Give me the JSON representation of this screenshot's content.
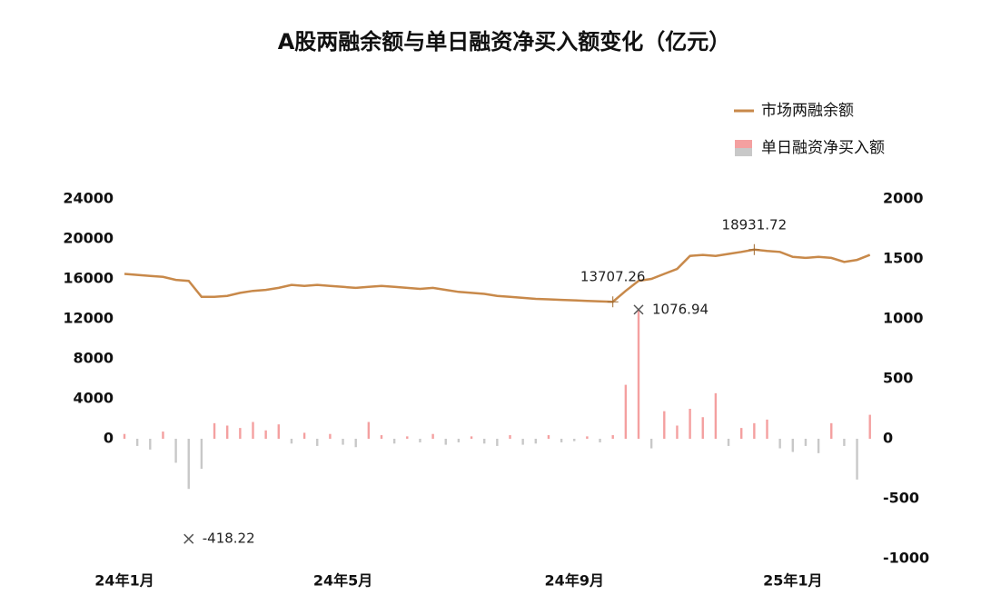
{
  "chart_data": {
    "type": "bar-line",
    "title": "A股两融余额与单日融资净买入额变化（亿元）",
    "categories": [
      "24年1月",
      null,
      null,
      null,
      null,
      null,
      null,
      null,
      null,
      null,
      null,
      null,
      null,
      null,
      null,
      null,
      null,
      "24年5月",
      null,
      null,
      null,
      null,
      null,
      null,
      null,
      null,
      null,
      null,
      null,
      null,
      null,
      null,
      null,
      null,
      null,
      "24年9月",
      null,
      null,
      null,
      null,
      null,
      null,
      null,
      null,
      null,
      null,
      null,
      null,
      null,
      null,
      null,
      null,
      "25年1月",
      null,
      null,
      null,
      null,
      null,
      null
    ],
    "series": [
      {
        "name": "市场两融余额",
        "type": "line",
        "axis": "y",
        "color": "#c8894a",
        "values": [
          16500,
          16400,
          16300,
          16200,
          15900,
          15800,
          14200,
          14200,
          14300,
          14600,
          14800,
          14900,
          15100,
          15400,
          15300,
          15400,
          15300,
          15200,
          15100,
          15200,
          15300,
          15200,
          15100,
          15000,
          15100,
          14900,
          14700,
          14600,
          14500,
          14300,
          14200,
          14100,
          14000,
          13950,
          13900,
          13850,
          13800,
          13750,
          13707.26,
          14800,
          15800,
          16000,
          16500,
          17000,
          18300,
          18400,
          18300,
          18500,
          18700,
          18931.72,
          18800,
          18700,
          18200,
          18100,
          18200,
          18100,
          17700,
          17900,
          18400
        ]
      },
      {
        "name": "单日融资净买入额",
        "type": "bar",
        "axis": "y2",
        "color": "#f4a0a0",
        "negative_color": "#c8c8c8",
        "values": [
          40,
          -60,
          -90,
          60,
          -200,
          -418.22,
          -250,
          130,
          110,
          90,
          140,
          70,
          120,
          -40,
          50,
          -60,
          40,
          -50,
          -70,
          140,
          30,
          -40,
          20,
          -30,
          40,
          -50,
          -30,
          20,
          -40,
          -60,
          30,
          -50,
          -40,
          30,
          -30,
          -20,
          20,
          -30,
          30,
          450,
          1076.94,
          -80,
          230,
          110,
          250,
          180,
          380,
          -60,
          90,
          130,
          160,
          -80,
          -110,
          -60,
          -120,
          130,
          -60,
          -340,
          200
        ]
      }
    ],
    "ylim": [
      -12000,
      24000
    ],
    "yticks": [
      0,
      4000,
      8000,
      12000,
      16000,
      20000,
      24000
    ],
    "y2lim": [
      -1000,
      2000
    ],
    "y2ticks": [
      -1000,
      -500,
      0,
      500,
      1000,
      1500,
      2000
    ],
    "annotate": [
      "max",
      "min"
    ],
    "legend": "top-right"
  }
}
